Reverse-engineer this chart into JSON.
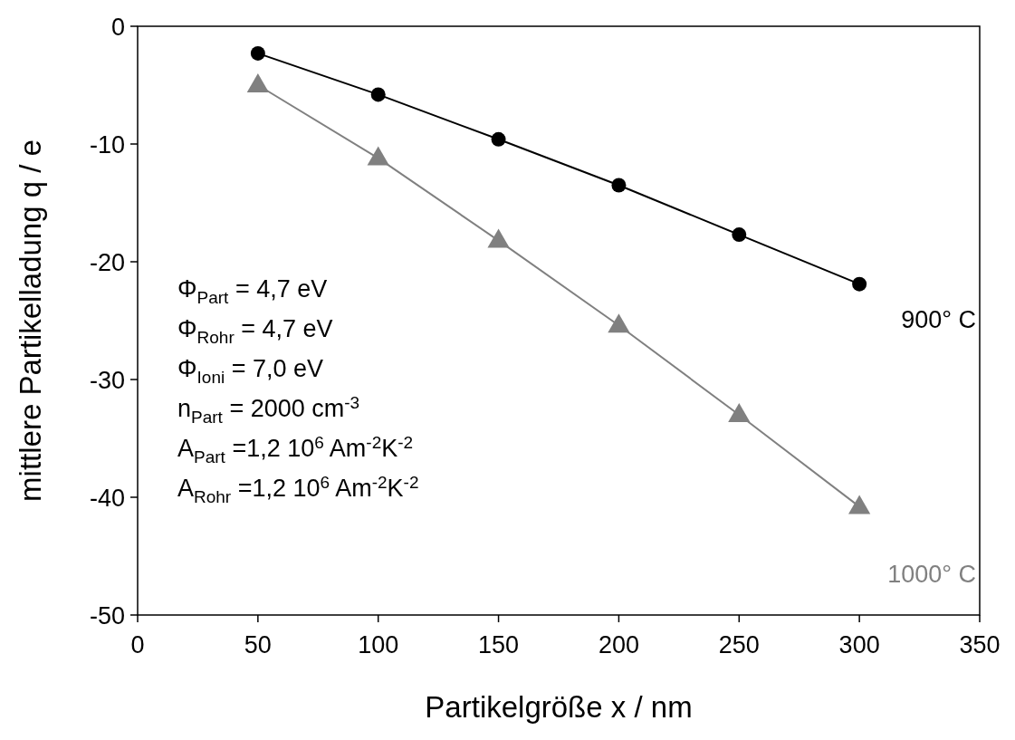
{
  "chart_data": {
    "type": "line",
    "xlabel": "Partikelgröße x / nm",
    "ylabel": "mittlere Partikelladung q / e",
    "x": [
      50,
      100,
      150,
      200,
      250,
      300
    ],
    "series": [
      {
        "name": "900° C",
        "color": "#000000",
        "marker": "circle",
        "values": [
          -2.3,
          -5.8,
          -9.6,
          -13.5,
          -17.7,
          -21.9
        ]
      },
      {
        "name": "1000° C",
        "color": "#808080",
        "marker": "triangle",
        "values": [
          -5.0,
          -11.2,
          -18.2,
          -25.4,
          -33.0,
          -40.8
        ]
      }
    ],
    "xlim": [
      0,
      350
    ],
    "xticks": [
      0,
      50,
      100,
      150,
      200,
      250,
      300,
      350
    ],
    "ylim": [
      -50,
      0
    ],
    "yticks": [
      -50,
      -40,
      -30,
      -20,
      -10,
      0
    ],
    "grid": false,
    "legend": false,
    "line_style": "solid",
    "annotations": [
      "Φ$_{Part}$ = 4,7 eV",
      "Φ$_{Rohr}$ = 4,7 eV",
      "Φ$_{Ioni}$ = 7,0 eV",
      "n$_{Part}$ = 2000 cm$^{-3}$",
      "A$_{Part}$ =1,2 10$^{6}$ Am$^{-2}$K$^{-2}$",
      "A$_{Rohr}$ =1,2 10$^{6}$ Am$^{-2}$K$^{-2}$"
    ]
  }
}
